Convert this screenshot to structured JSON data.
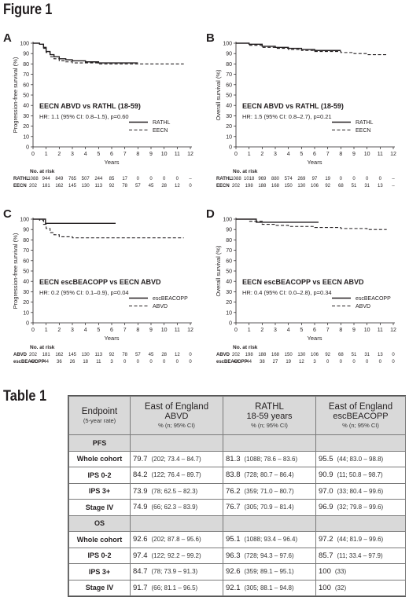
{
  "figure_title": "Figure 1",
  "table_title": "Table 1",
  "chart_data": [
    {
      "panel": "A",
      "type": "line",
      "ylabel": "Progression-free survival (%)",
      "xlabel": "Years",
      "xlim": [
        0,
        12
      ],
      "ylim": [
        0,
        100
      ],
      "xticks": [
        "0",
        "1",
        "2",
        "3",
        "4",
        "5",
        "6",
        "7",
        "8",
        "9",
        "10",
        "11",
        "12"
      ],
      "yticks": [
        "0",
        "10",
        "20",
        "30",
        "40",
        "50",
        "60",
        "70",
        "80",
        "90",
        "100"
      ],
      "comparison": "EECN ABVD vs RATHL (18-59)",
      "hr_line": "HR: 1.1 (95% CI: 0.8–1.5), p=0.60",
      "legend": [
        {
          "name": "RATHL",
          "style": "solid"
        },
        {
          "name": "EECN",
          "style": "dashed"
        }
      ],
      "series": [
        {
          "name": "RATHL",
          "style": "solid",
          "x": [
            0,
            0.5,
            0.8,
            1.0,
            1.3,
            1.6,
            2,
            2.5,
            3,
            4,
            5,
            6,
            7,
            8
          ],
          "y": [
            100,
            99,
            96,
            92,
            89,
            87,
            85,
            84,
            83,
            82,
            81,
            81,
            81,
            81
          ]
        },
        {
          "name": "EECN",
          "style": "dashed",
          "x": [
            0,
            0.5,
            0.8,
            1.0,
            1.3,
            1.6,
            2,
            2.5,
            3,
            4,
            5,
            6,
            7,
            8,
            9,
            10,
            11,
            11.5
          ],
          "y": [
            100,
            99,
            95,
            91,
            87,
            85,
            83,
            82,
            81,
            81,
            80,
            80,
            80,
            80,
            80,
            80,
            80,
            80
          ]
        }
      ],
      "risk_table": {
        "header": "No. at risk",
        "rows": [
          {
            "label": "RATHL",
            "values": [
              "1088",
              "944",
              "849",
              "765",
              "507",
              "244",
              "85",
              "17",
              "0",
              "0",
              "0",
              "0",
              "–"
            ]
          },
          {
            "label": "EECN",
            "values": [
              "202",
              "181",
              "162",
              "145",
              "130",
              "113",
              "92",
              "78",
              "57",
              "45",
              "28",
              "12",
              "0"
            ]
          }
        ]
      }
    },
    {
      "panel": "B",
      "type": "line",
      "ylabel": "Overall survival (%)",
      "xlabel": "Years",
      "xlim": [
        0,
        12
      ],
      "ylim": [
        0,
        100
      ],
      "xticks": [
        "0",
        "1",
        "2",
        "3",
        "4",
        "5",
        "6",
        "7",
        "8",
        "9",
        "10",
        "11",
        "12"
      ],
      "yticks": [
        "0",
        "10",
        "20",
        "30",
        "40",
        "50",
        "60",
        "70",
        "80",
        "90",
        "100"
      ],
      "comparison": "EECN ABVD vs RATHL (18-59)",
      "hr_line": "HR: 1.5 (95% CI: 0.8–2.7), p=0.21",
      "legend": [
        {
          "name": "RATHL",
          "style": "solid"
        },
        {
          "name": "EECN",
          "style": "dashed"
        }
      ],
      "series": [
        {
          "name": "RATHL",
          "style": "solid",
          "x": [
            0,
            1,
            2,
            3,
            4,
            5,
            6,
            7,
            8
          ],
          "y": [
            100,
            99,
            97,
            96,
            95,
            94,
            93,
            93,
            93
          ]
        },
        {
          "name": "EECN",
          "style": "dashed",
          "x": [
            0,
            1,
            2,
            3,
            4,
            5,
            6,
            7,
            8,
            9,
            10,
            11,
            11.5
          ],
          "y": [
            100,
            98,
            96,
            95,
            94,
            93,
            92,
            92,
            91,
            90,
            89,
            89,
            89
          ]
        }
      ],
      "risk_table": {
        "header": "No. at risk",
        "rows": [
          {
            "label": "RATHL",
            "values": [
              "1088",
              "1018",
              "969",
              "880",
              "574",
              "269",
              "97",
              "19",
              "0",
              "0",
              "0",
              "0",
              "–"
            ]
          },
          {
            "label": "EECN",
            "values": [
              "202",
              "198",
              "188",
              "168",
              "150",
              "130",
              "106",
              "92",
              "68",
              "51",
              "31",
              "13",
              "–"
            ]
          }
        ]
      }
    },
    {
      "panel": "C",
      "type": "line",
      "ylabel": "Progression-free survival (%)",
      "xlabel": "Years",
      "xlim": [
        0,
        12
      ],
      "ylim": [
        0,
        100
      ],
      "xticks": [
        "0",
        "1",
        "2",
        "3",
        "4",
        "5",
        "6",
        "7",
        "8",
        "9",
        "10",
        "11",
        "12"
      ],
      "yticks": [
        "0",
        "10",
        "20",
        "30",
        "40",
        "50",
        "60",
        "70",
        "80",
        "90",
        "100"
      ],
      "comparison": "EECN escBEACOPP vs EECN ABVD",
      "hr_line": "HR: 0.2 (95% CI: 0.1–0.9), p=0.04",
      "legend": [
        {
          "name": "escBEACOPP",
          "style": "solid"
        },
        {
          "name": "ABVD",
          "style": "dashed"
        }
      ],
      "series": [
        {
          "name": "escBEACOPP",
          "style": "solid",
          "x": [
            0,
            0.9,
            0.95,
            6.3
          ],
          "y": [
            100,
            100,
            96,
            96
          ]
        },
        {
          "name": "ABVD",
          "style": "dashed",
          "x": [
            0,
            0.5,
            0.8,
            1.0,
            1.3,
            1.6,
            2,
            3,
            4,
            5,
            6,
            7,
            8,
            9,
            10,
            11,
            11.5
          ],
          "y": [
            100,
            99,
            95,
            91,
            87,
            85,
            83,
            82,
            82,
            82,
            82,
            82,
            82,
            82,
            82,
            82,
            82
          ]
        }
      ],
      "risk_table": {
        "header": "No. at risk",
        "rows": [
          {
            "label": "ABVD",
            "values": [
              "202",
              "181",
              "162",
              "145",
              "130",
              "113",
              "92",
              "78",
              "57",
              "45",
              "28",
              "12",
              "0"
            ]
          },
          {
            "label": "escBEACOPP",
            "values": [
              "44",
              "44",
              "36",
              "26",
              "18",
              "11",
              "3",
              "0",
              "0",
              "0",
              "0",
              "0",
              "0"
            ]
          }
        ]
      }
    },
    {
      "panel": "D",
      "type": "line",
      "ylabel": "Overall survival (%)",
      "xlabel": "Years",
      "xlim": [
        0,
        12
      ],
      "ylim": [
        0,
        100
      ],
      "xticks": [
        "0",
        "1",
        "2",
        "3",
        "4",
        "5",
        "6",
        "7",
        "8",
        "9",
        "10",
        "11",
        "12"
      ],
      "yticks": [
        "0",
        "10",
        "20",
        "30",
        "40",
        "50",
        "60",
        "70",
        "80",
        "90",
        "100"
      ],
      "comparison": "EECN escBEACOPP vs EECN ABVD",
      "hr_line": "HR: 0.4 (95% CI: 0.0–2.8), p=0.34",
      "legend": [
        {
          "name": "escBEACOPP",
          "style": "solid"
        },
        {
          "name": "ABVD",
          "style": "dashed"
        }
      ],
      "series": [
        {
          "name": "escBEACOPP",
          "style": "solid",
          "x": [
            0,
            1.5,
            1.55,
            6.3
          ],
          "y": [
            100,
            100,
            97,
            97
          ]
        },
        {
          "name": "ABVD",
          "style": "dashed",
          "x": [
            0,
            1,
            2,
            3,
            4,
            5,
            6,
            7,
            8,
            9,
            10,
            11,
            11.5
          ],
          "y": [
            100,
            98,
            95,
            94,
            93,
            93,
            92,
            92,
            91,
            91,
            90,
            90,
            90
          ]
        }
      ],
      "risk_table": {
        "header": "No. at risk",
        "rows": [
          {
            "label": "ABVD",
            "values": [
              "202",
              "198",
              "188",
              "168",
              "150",
              "130",
              "106",
              "92",
              "68",
              "51",
              "31",
              "13",
              "0"
            ]
          },
          {
            "label": "escBEACOPP",
            "values": [
              "44",
              "44",
              "38",
              "27",
              "19",
              "12",
              "3",
              "0",
              "0",
              "0",
              "0",
              "0",
              "0"
            ]
          }
        ]
      }
    }
  ],
  "table": {
    "header": {
      "endpoint": "Endpoint",
      "endpoint_sub": "(5-year rate)",
      "col1_main": "East of England",
      "col1_sub": "ABVD",
      "col1_note": "% (n; 95% CI)",
      "col2_main": "RATHL",
      "col2_sub": "18-59 years",
      "col2_note": "% (n; 95% CI)",
      "col3_main": "East of England",
      "col3_sub": "escBEACOPP",
      "col3_note": "% (n; 95% CI)"
    },
    "sections": [
      {
        "title": "PFS",
        "rows": [
          {
            "label": "Whole cohort",
            "cells": [
              {
                "v": "79.7",
                "ci": "(202;  73.4 – 84.7)"
              },
              {
                "v": "81.3",
                "ci": "(1088; 78.6 – 83.6)"
              },
              {
                "v": "95.5",
                "ci": "(44;  83.0 – 98.8)"
              }
            ]
          },
          {
            "label": "IPS 0-2",
            "cells": [
              {
                "v": "84.2",
                "ci": "(122;  76.4 – 89.7)"
              },
              {
                "v": "83.8",
                "ci": "(728;  80.7 – 86.4)"
              },
              {
                "v": "90.9",
                "ci": "(11;  50.8 – 98.7)"
              }
            ]
          },
          {
            "label": "IPS 3+",
            "cells": [
              {
                "v": "73.9",
                "ci": "(78;  62.5 – 82.3)"
              },
              {
                "v": "76.2",
                "ci": "(359; 71.0 – 80.7)"
              },
              {
                "v": "97.0",
                "ci": "(33;  80.4 – 99.6)"
              }
            ]
          },
          {
            "label": "Stage IV",
            "cells": [
              {
                "v": "74.9",
                "ci": "(66;  62.3 – 83.9)"
              },
              {
                "v": "76.7",
                "ci": "(305; 70.9 – 81.4)"
              },
              {
                "v": "96.9",
                "ci": "(32;  79.8 – 99.6)"
              }
            ]
          }
        ]
      },
      {
        "title": "OS",
        "rows": [
          {
            "label": "Whole cohort",
            "cells": [
              {
                "v": "92.6",
                "ci": "(202;  87.8 – 95.6)"
              },
              {
                "v": "95.1",
                "ci": "(1088; 93.4 – 96.4)"
              },
              {
                "v": "97.2",
                "ci": "(44;  81.9 – 99.6)"
              }
            ]
          },
          {
            "label": "IPS 0-2",
            "cells": [
              {
                "v": "97.4",
                "ci": "(122;  92.2 – 99.2)"
              },
              {
                "v": "96.3",
                "ci": "(728;  94.3 – 97.6)"
              },
              {
                "v": "85.7",
                "ci": "(11;  33.4 – 97.9)"
              }
            ]
          },
          {
            "label": "IPS 3+",
            "cells": [
              {
                "v": "84.7",
                "ci": "(78;  73.9 – 91.3)"
              },
              {
                "v": "92.6",
                "ci": "(359; 89.1 – 95.1)"
              },
              {
                "v": "100",
                "ci": "(33)"
              }
            ]
          },
          {
            "label": "Stage IV",
            "cells": [
              {
                "v": "91.7",
                "ci": "(66;  81.1 – 96.5)"
              },
              {
                "v": "92.1",
                "ci": "(305; 88.1 – 94.8)"
              },
              {
                "v": "100",
                "ci": "(32)"
              }
            ]
          }
        ]
      }
    ]
  }
}
